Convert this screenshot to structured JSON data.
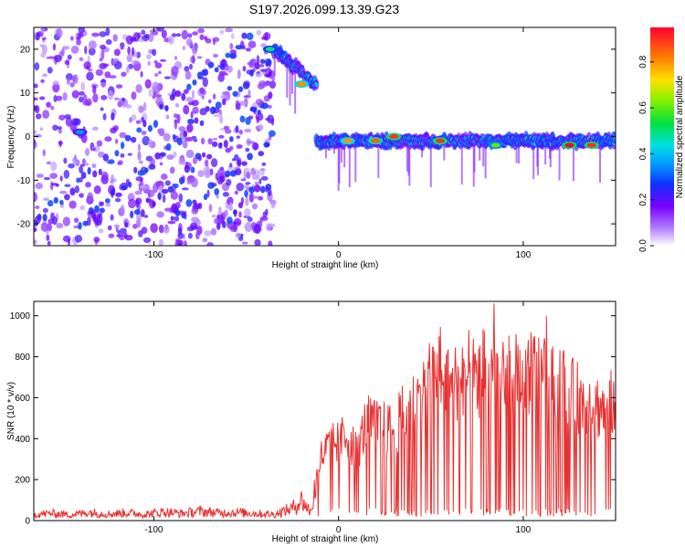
{
  "chart_data": [
    {
      "type": "heatmap",
      "title": "S197.2026.099.13.39.G23",
      "xlabel": "Height of straight line (km)",
      "ylabel": "Frequency (Hz)",
      "xlim": [
        -165,
        150
      ],
      "ylim": [
        -25,
        25
      ],
      "xticks": [
        -100,
        0,
        100
      ],
      "yticks": [
        -20,
        -10,
        0,
        10,
        20
      ],
      "colorbar": {
        "label": "Normalized spectral amplitude",
        "range": [
          0.0,
          0.95
        ],
        "ticks": [
          "0.0",
          "0.2",
          "0.4",
          "0.6",
          "0.8"
        ]
      },
      "ridge_segments": [
        {
          "x_start": -165,
          "x_end": -35,
          "freq": [
            2,
            24
          ],
          "description": "noisy scatter region"
        },
        {
          "x_start": -35,
          "x_end": -12,
          "freq": [
            20,
            12
          ]
        },
        {
          "x_start": -12,
          "x_end": 150,
          "freq": [
            -1,
            -1
          ]
        }
      ],
      "hotspots": [
        {
          "x": 5,
          "y": -1,
          "amp": 0.8
        },
        {
          "x": 20,
          "y": -1,
          "amp": 0.85
        },
        {
          "x": 30,
          "y": 0,
          "amp": 0.9
        },
        {
          "x": 55,
          "y": -1,
          "amp": 0.9
        },
        {
          "x": 85,
          "y": -2,
          "amp": 0.6
        },
        {
          "x": 125,
          "y": -2,
          "amp": 0.95
        },
        {
          "x": 137,
          "y": -2,
          "amp": 0.9
        },
        {
          "x": -20,
          "y": 12,
          "amp": 0.8
        },
        {
          "x": -37,
          "y": 20,
          "amp": 0.5
        },
        {
          "x": -140,
          "y": 1,
          "amp": 0.35
        }
      ]
    },
    {
      "type": "line",
      "title": "",
      "xlabel": "Height of straight line (km)",
      "ylabel": "SNR (10 * v/v)",
      "xlim": [
        -165,
        150
      ],
      "ylim": [
        0,
        1070
      ],
      "xticks": [
        -100,
        0,
        100
      ],
      "yticks": [
        0,
        200,
        400,
        600,
        800,
        1000
      ],
      "color": "#e83030",
      "series": [
        {
          "name": "SNR",
          "x": [
            -165,
            -155,
            -145,
            -135,
            -125,
            -115,
            -105,
            -95,
            -85,
            -75,
            -65,
            -55,
            -45,
            -35,
            -25,
            -20,
            -15,
            -12,
            -10,
            -8,
            -5,
            0,
            5,
            10,
            15,
            20,
            25,
            30,
            35,
            40,
            45,
            50,
            55,
            60,
            65,
            70,
            75,
            80,
            85,
            90,
            95,
            100,
            105,
            110,
            115,
            120,
            125,
            130,
            135,
            140,
            145,
            150
          ],
          "values": [
            30,
            35,
            28,
            40,
            32,
            38,
            30,
            42,
            35,
            45,
            38,
            40,
            35,
            30,
            60,
            100,
            40,
            200,
            300,
            330,
            360,
            380,
            420,
            330,
            480,
            470,
            450,
            440,
            520,
            560,
            600,
            680,
            760,
            650,
            700,
            720,
            690,
            740,
            700,
            680,
            720,
            690,
            720,
            710,
            650,
            700,
            620,
            600,
            580,
            560,
            540,
            600
          ]
        }
      ]
    }
  ]
}
